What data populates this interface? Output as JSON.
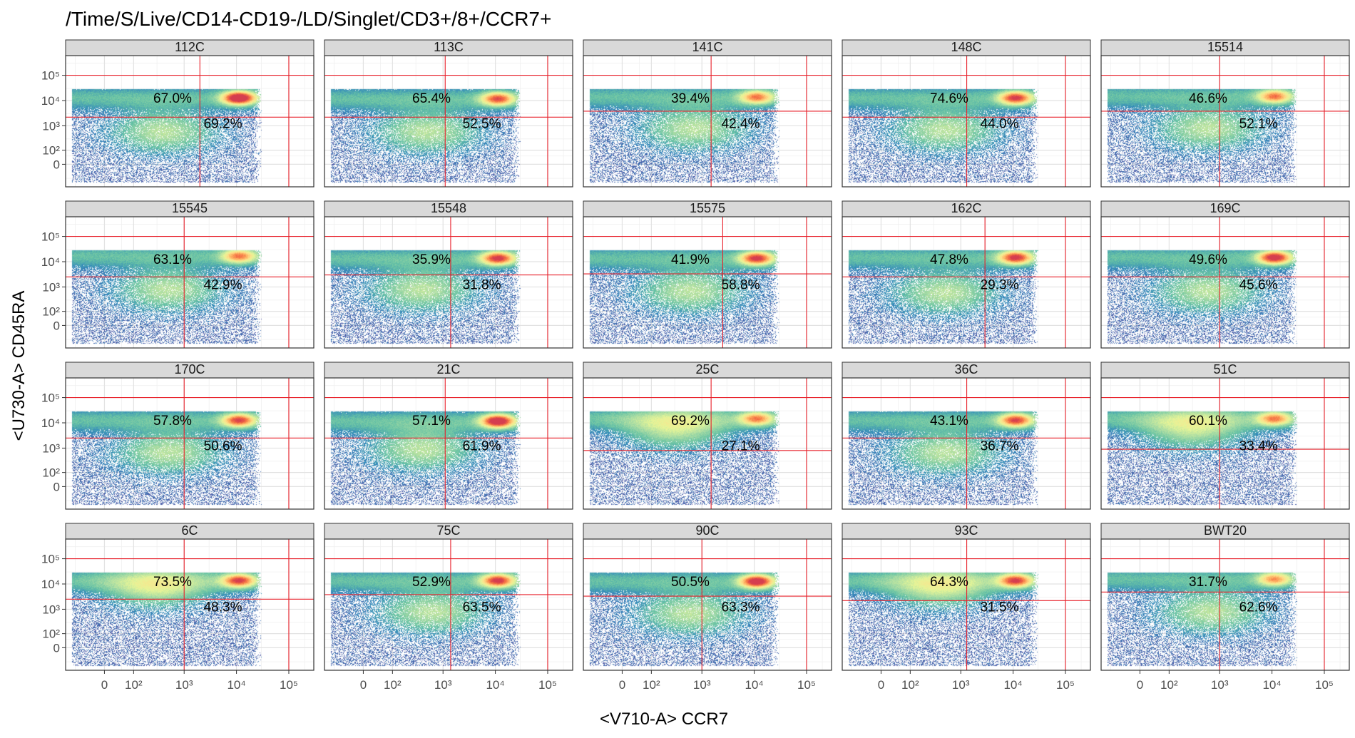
{
  "chart_data": {
    "type": "scatter",
    "subtype": "faceted flow cytometry density plot",
    "title": "/Time/S/Live/CD14-CD19-/LD/Singlet/CD3+/8+/CCR7+",
    "xlabel": "<V710-A> CCR7",
    "ylabel": "<U730-A> CD45RA",
    "x_scale": "biexponential",
    "y_scale": "biexponential",
    "x_ticks": [
      0,
      100,
      1000,
      10000,
      100000
    ],
    "x_tick_labels": [
      "0",
      "10²",
      "10³",
      "10⁴",
      "10⁵"
    ],
    "y_ticks": [
      0,
      100,
      1000,
      10000,
      100000
    ],
    "y_tick_labels": [
      "0",
      "10²",
      "10³",
      "10⁴",
      "10⁵"
    ],
    "grid": true,
    "gate_color": "#e8202a",
    "strip_fill": "#d9d9d9",
    "colormap": [
      "#5e4fa2",
      "#3288bd",
      "#66c2a5",
      "#abdda4",
      "#e6f598",
      "#fee08b",
      "#fdae61",
      "#f46d43",
      "#d53e4f"
    ],
    "facets": [
      {
        "name": "112C",
        "upper_pct": "67.0%",
        "lower_pct": "69.2%",
        "gate_x": 2000,
        "gate_y": 2200,
        "hot_x": 11000,
        "hot_y": 13000,
        "peak": 1.0,
        "mid_x": 400,
        "mid_y": 600
      },
      {
        "name": "113C",
        "upper_pct": "65.4%",
        "lower_pct": "52.5%",
        "gate_x": 1100,
        "gate_y": 2200,
        "hot_x": 11000,
        "hot_y": 12000,
        "peak": 0.72,
        "mid_x": 500,
        "mid_y": 600
      },
      {
        "name": "141C",
        "upper_pct": "39.4%",
        "lower_pct": "42.4%",
        "gate_x": 1500,
        "gate_y": 3800,
        "hot_x": 11000,
        "hot_y": 14000,
        "peak": 0.62,
        "mid_x": 700,
        "mid_y": 800
      },
      {
        "name": "148C",
        "upper_pct": "74.6%",
        "lower_pct": "44.0%",
        "gate_x": 1300,
        "gate_y": 2200,
        "hot_x": 11000,
        "hot_y": 13000,
        "peak": 0.78,
        "mid_x": 500,
        "mid_y": 700
      },
      {
        "name": "15514",
        "upper_pct": "46.6%",
        "lower_pct": "52.1%",
        "gate_x": 1000,
        "gate_y": 3800,
        "hot_x": 11000,
        "hot_y": 15000,
        "peak": 0.62,
        "mid_x": 600,
        "mid_y": 800
      },
      {
        "name": "15545",
        "upper_pct": "63.1%",
        "lower_pct": "42.9%",
        "gate_x": 1000,
        "gate_y": 2500,
        "hot_x": 11000,
        "hot_y": 17000,
        "peak": 0.62,
        "mid_x": 500,
        "mid_y": 800
      },
      {
        "name": "15548",
        "upper_pct": "35.9%",
        "lower_pct": "31.8%",
        "gate_x": 1400,
        "gate_y": 3000,
        "hot_x": 11000,
        "hot_y": 14000,
        "peak": 0.8,
        "mid_x": 400,
        "mid_y": 800
      },
      {
        "name": "15575",
        "upper_pct": "41.9%",
        "lower_pct": "58.8%",
        "gate_x": 2500,
        "gate_y": 3300,
        "hot_x": 11000,
        "hot_y": 14000,
        "peak": 0.8,
        "mid_x": 600,
        "mid_y": 700
      },
      {
        "name": "162C",
        "upper_pct": "47.8%",
        "lower_pct": "29.3%",
        "gate_x": 2900,
        "gate_y": 2500,
        "hot_x": 11000,
        "hot_y": 15000,
        "peak": 0.8,
        "mid_x": 500,
        "mid_y": 600
      },
      {
        "name": "169C",
        "upper_pct": "49.6%",
        "lower_pct": "45.6%",
        "gate_x": 1000,
        "gate_y": 2500,
        "hot_x": 11000,
        "hot_y": 15000,
        "peak": 0.85,
        "mid_x": 600,
        "mid_y": 700
      },
      {
        "name": "170C",
        "upper_pct": "57.8%",
        "lower_pct": "50.6%",
        "gate_x": 1000,
        "gate_y": 2500,
        "hot_x": 11000,
        "hot_y": 13000,
        "peak": 0.75,
        "mid_x": 500,
        "mid_y": 700
      },
      {
        "name": "21C",
        "upper_pct": "57.1%",
        "lower_pct": "61.9%",
        "gate_x": 1100,
        "gate_y": 2500,
        "hot_x": 11000,
        "hot_y": 12000,
        "peak": 0.95,
        "mid_x": 400,
        "mid_y": 900
      },
      {
        "name": "25C",
        "upper_pct": "69.2%",
        "lower_pct": "27.1%",
        "gate_x": 1500,
        "gate_y": 800,
        "hot_x": 11000,
        "hot_y": 15000,
        "peak": 0.6,
        "mid_x": 300,
        "mid_y": 6000
      },
      {
        "name": "36C",
        "upper_pct": "43.1%",
        "lower_pct": "36.7%",
        "gate_x": 1300,
        "gate_y": 2500,
        "hot_x": 11000,
        "hot_y": 13000,
        "peak": 0.75,
        "mid_x": 500,
        "mid_y": 700
      },
      {
        "name": "51C",
        "upper_pct": "60.1%",
        "lower_pct": "33.4%",
        "gate_x": 1000,
        "gate_y": 900,
        "hot_x": 11000,
        "hot_y": 15000,
        "peak": 0.6,
        "mid_x": 300,
        "mid_y": 6000
      },
      {
        "name": "6C",
        "upper_pct": "73.5%",
        "lower_pct": "48.3%",
        "gate_x": 1000,
        "gate_y": 2500,
        "hot_x": 11000,
        "hot_y": 14000,
        "peak": 0.75,
        "mid_x": 300,
        "mid_y": 7000
      },
      {
        "name": "75C",
        "upper_pct": "52.9%",
        "lower_pct": "63.5%",
        "gate_x": 1400,
        "gate_y": 3800,
        "hot_x": 11000,
        "hot_y": 14000,
        "peak": 0.8,
        "mid_x": 600,
        "mid_y": 800
      },
      {
        "name": "90C",
        "upper_pct": "50.5%",
        "lower_pct": "63.3%",
        "gate_x": 1000,
        "gate_y": 3300,
        "hot_x": 11000,
        "hot_y": 13000,
        "peak": 0.9,
        "mid_x": 600,
        "mid_y": 700
      },
      {
        "name": "93C",
        "upper_pct": "64.3%",
        "lower_pct": "31.5%",
        "gate_x": 1300,
        "gate_y": 2200,
        "hot_x": 11000,
        "hot_y": 14000,
        "peak": 0.75,
        "mid_x": 400,
        "mid_y": 7000
      },
      {
        "name": "BWT20",
        "upper_pct": "31.7%",
        "lower_pct": "62.6%",
        "gate_x": 1000,
        "gate_y": 4800,
        "hot_x": 11000,
        "hot_y": 16000,
        "peak": 0.55,
        "mid_x": 700,
        "mid_y": 800
      }
    ]
  }
}
